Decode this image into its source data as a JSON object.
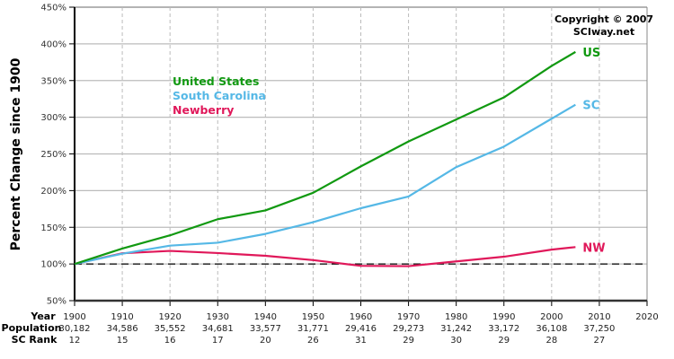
{
  "chart_data": {
    "type": "line",
    "title": "",
    "ylabel": "Percent Change since 1900",
    "xlabel": "Year",
    "ylim": [
      50,
      450
    ],
    "xlim": [
      1900,
      2020
    ],
    "grid": true,
    "yticks": [
      "50%",
      "100%",
      "150%",
      "200%",
      "250%",
      "300%",
      "350%",
      "400%",
      "450%"
    ],
    "xticks": [
      "1900",
      "1910",
      "1920",
      "1930",
      "1940",
      "1950",
      "1960",
      "1970",
      "1980",
      "1990",
      "2000",
      "2010",
      "2020"
    ],
    "table_rows": {
      "year_label": "Year",
      "population_label": "Population",
      "rank_label": "SC Rank",
      "population": [
        "30,182",
        "34,586",
        "35,552",
        "34,681",
        "33,577",
        "31,771",
        "29,416",
        "29,273",
        "31,242",
        "33,172",
        "36,108",
        "37,250",
        ""
      ],
      "rank": [
        "12",
        "15",
        "16",
        "17",
        "20",
        "26",
        "31",
        "29",
        "30",
        "29",
        "28",
        "27",
        ""
      ]
    },
    "x": [
      1900,
      1910,
      1920,
      1930,
      1940,
      1950,
      1960,
      1970,
      1980,
      1990,
      2000,
      2005
    ],
    "series": [
      {
        "name": "United States",
        "short": "US",
        "color": "#119911",
        "values": [
          100,
          121,
          139,
          161,
          173,
          197,
          233,
          267,
          297,
          327,
          370,
          389
        ]
      },
      {
        "name": "South Carolina",
        "short": "SC",
        "color": "#55b8e6",
        "values": [
          100,
          114,
          125,
          129,
          141,
          157,
          176,
          192,
          232,
          260,
          298,
          317
        ]
      },
      {
        "name": "Newberry",
        "short": "NW",
        "color": "#e0185a",
        "values": [
          100,
          114.6,
          117.8,
          114.9,
          111.2,
          105.3,
          97.5,
          97.0,
          103.5,
          109.9,
          119.6,
          123
        ]
      }
    ],
    "reference_line": {
      "value": 100,
      "style": "dashed",
      "color": "#000000"
    },
    "legend_position": "upper-left inside plot",
    "annotations": [
      "Copyright © 2007",
      "SCIway.net"
    ]
  },
  "copyright": {
    "line1": "Copyright © 2007",
    "line2": "SCIway.net"
  }
}
